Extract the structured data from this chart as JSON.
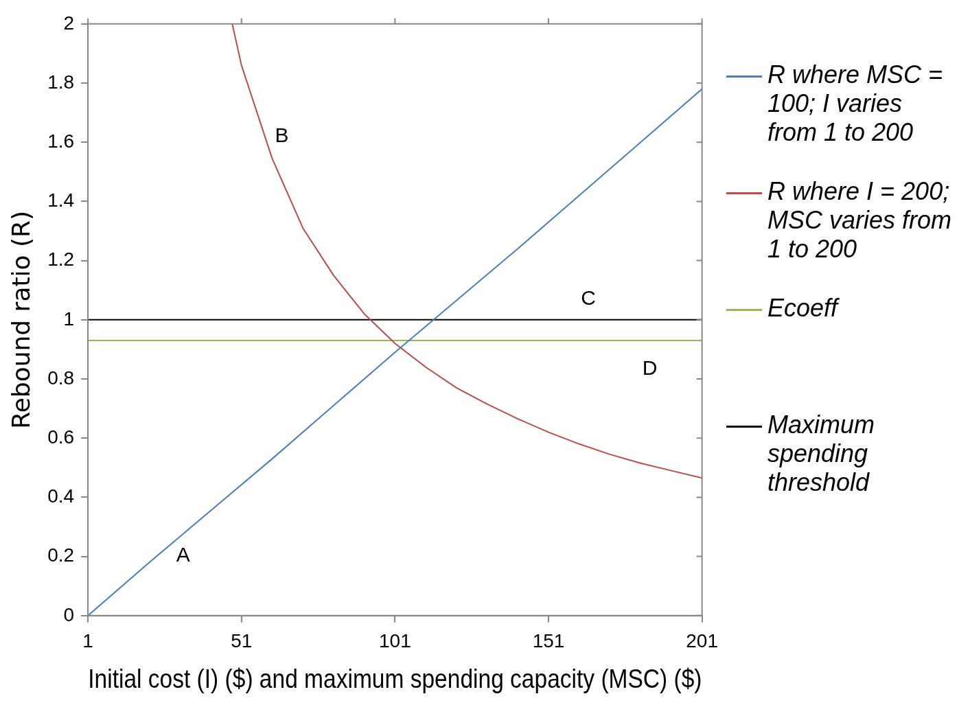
{
  "chart_data": {
    "type": "line",
    "xlabel": "Initial cost (I) ($) and maximum spending capacity (MSC) ($)",
    "ylabel": "Rebound ratio (R)",
    "xlim": [
      1,
      201
    ],
    "xticks": [
      1,
      51,
      101,
      151,
      201
    ],
    "ylim": [
      0,
      2
    ],
    "yticks": [
      0,
      0.2,
      0.4,
      0.6,
      0.8,
      1,
      1.2,
      1.4,
      1.6,
      1.8,
      2
    ],
    "grid": false,
    "legend": "right",
    "marker": "none",
    "line_style": "solid",
    "series": [
      {
        "name": "R where MSC = 100; I varies from 1 to 200",
        "color": "#4a7ebb",
        "x": [
          1,
          21,
          41,
          61,
          81,
          101,
          121,
          141,
          161,
          181,
          201
        ],
        "values": [
          0,
          0.18,
          0.355,
          0.53,
          0.71,
          0.89,
          1.065,
          1.24,
          1.42,
          1.6,
          1.78
        ]
      },
      {
        "name": "R where I = 200; MSC varies from 1 to 200",
        "color": "#be4b48",
        "x": [
          48,
          51,
          61,
          71,
          81,
          91,
          101,
          111,
          121,
          131,
          141,
          151,
          161,
          171,
          181,
          191,
          201
        ],
        "values": [
          2,
          1.86,
          1.545,
          1.31,
          1.15,
          1.02,
          0.92,
          0.84,
          0.77,
          0.715,
          0.665,
          0.62,
          0.58,
          0.545,
          0.515,
          0.49,
          0.465
        ]
      },
      {
        "name": "Ecoeff",
        "color": "#98b954",
        "x": [
          1,
          201
        ],
        "values": [
          0.93,
          0.93
        ]
      },
      {
        "name": "Maximum spending threshold",
        "color": "#000000",
        "x": [
          1,
          201
        ],
        "values": [
          1,
          1
        ]
      }
    ],
    "annotations": [
      {
        "text": "A",
        "x": 32,
        "y": 0.276
      },
      {
        "text": "B",
        "x": 61,
        "y": 1.545
      },
      {
        "text": "C",
        "x": 164,
        "y": 1
      },
      {
        "text": "D",
        "x": 184,
        "y": 0.93
      }
    ]
  }
}
